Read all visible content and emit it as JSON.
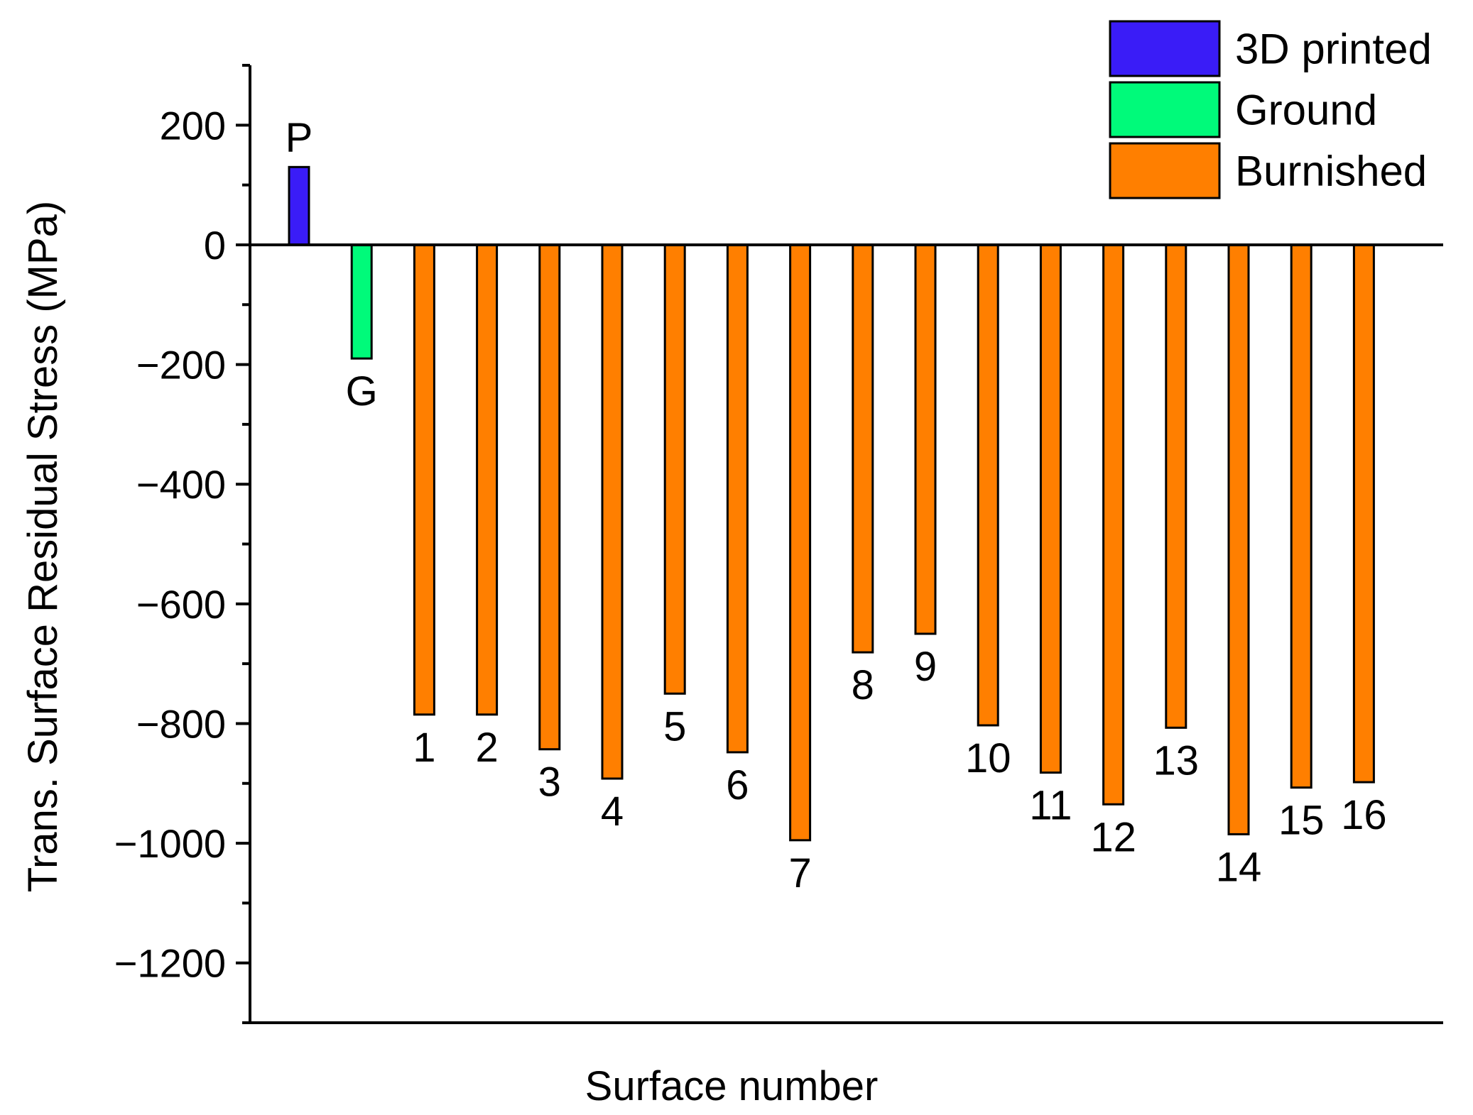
{
  "chart_data": {
    "type": "bar",
    "title": "",
    "xlabel": "Surface number",
    "ylabel": "Trans. Surface Residual Stress (MPa)",
    "ylim": [
      -1300,
      300
    ],
    "yticks": [
      200,
      0,
      -200,
      -400,
      -600,
      -800,
      -1000,
      -1200
    ],
    "ytick_labels": [
      "200",
      "0",
      "−200",
      "−400",
      "−600",
      "−800",
      "−1000",
      "−1200"
    ],
    "grid": false,
    "legend_position": "top-right",
    "series": [
      {
        "name": "3D printed",
        "color": "#3a1cf7"
      },
      {
        "name": "Ground",
        "color": "#00fa7a"
      },
      {
        "name": "Burnished",
        "color": "#ff7f00"
      }
    ],
    "bars": [
      {
        "label": "P",
        "value": 130,
        "series": 0
      },
      {
        "label": "G",
        "value": -190,
        "series": 1
      },
      {
        "label": "1",
        "value": -785,
        "series": 2
      },
      {
        "label": "2",
        "value": -785,
        "series": 2
      },
      {
        "label": "3",
        "value": -843,
        "series": 2
      },
      {
        "label": "4",
        "value": -892,
        "series": 2
      },
      {
        "label": "5",
        "value": -750,
        "series": 2
      },
      {
        "label": "6",
        "value": -848,
        "series": 2
      },
      {
        "label": "7",
        "value": -995,
        "series": 2
      },
      {
        "label": "8",
        "value": -681,
        "series": 2
      },
      {
        "label": "9",
        "value": -650,
        "series": 2
      },
      {
        "label": "10",
        "value": -803,
        "series": 2
      },
      {
        "label": "11",
        "value": -882,
        "series": 2
      },
      {
        "label": "12",
        "value": -935,
        "series": 2
      },
      {
        "label": "13",
        "value": -807,
        "series": 2
      },
      {
        "label": "14",
        "value": -985,
        "series": 2
      },
      {
        "label": "15",
        "value": -907,
        "series": 2
      },
      {
        "label": "16",
        "value": -898,
        "series": 2
      }
    ]
  }
}
